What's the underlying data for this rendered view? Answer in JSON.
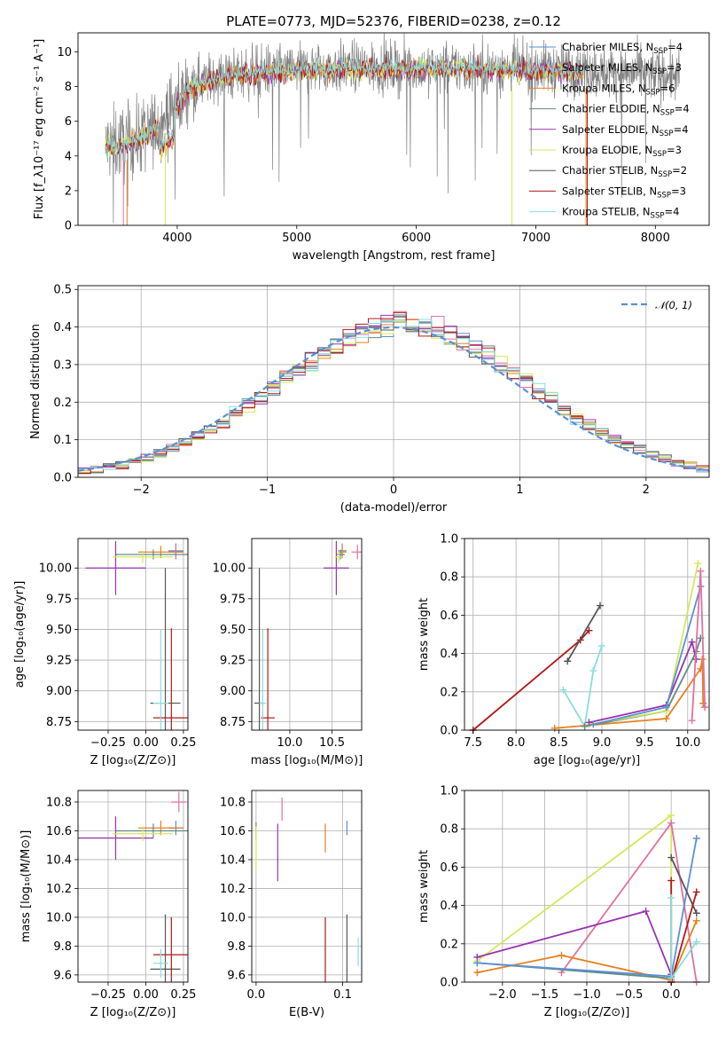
{
  "title": "PLATE=0773, MJD=52376, FIBERID=0238, z=0.12",
  "colors": {
    "Chabrier MILES": "#5b8fd4",
    "Salpeter MILES": "#e0719f",
    "Kroupa MILES": "#e8801e",
    "Chabrier ELODIE": "#5e8c86",
    "Salpeter ELODIE": "#9932b0",
    "Kroupa ELODIE": "#d4e85a",
    "Chabrier STELIB": "#555555",
    "Salpeter STELIB": "#b01818",
    "Kroupa STELIB": "#86dfe0"
  },
  "chart_data": [
    {
      "id": "spectrum",
      "type": "line",
      "xlabel": "wavelength [Angstrom, rest frame]",
      "ylabel": "Flux [f_λ10⁻¹⁷ erg cm⁻² s⁻¹ A⁻¹]",
      "xlim": [
        3170,
        8450
      ],
      "ylim": [
        0,
        11.1
      ],
      "xticks": [
        "4000",
        "5000",
        "6000",
        "7000",
        "8000"
      ],
      "yticks": [
        "0",
        "2",
        "4",
        "6",
        "8",
        "10"
      ],
      "legend_position": "top-right",
      "legend": [
        {
          "model": "Chabrier MILES",
          "label_a": "Chabrier MILES, N",
          "sub": "SSP",
          "label_b": "=4"
        },
        {
          "model": "Salpeter MILES",
          "label_a": "Salpeter MILES, N",
          "sub": "SSP",
          "label_b": "=3"
        },
        {
          "model": "Kroupa MILES",
          "label_a": "Kroupa MILES, N",
          "sub": "SSP",
          "label_b": "=6"
        },
        {
          "model": "Chabrier ELODIE",
          "label_a": "Chabrier ELODIE, N",
          "sub": "SSP",
          "label_b": "=4"
        },
        {
          "model": "Salpeter ELODIE",
          "label_a": "Salpeter ELODIE, N",
          "sub": "SSP",
          "label_b": "=4"
        },
        {
          "model": "Kroupa ELODIE",
          "label_a": "Kroupa ELODIE, N",
          "sub": "SSP",
          "label_b": "=3"
        },
        {
          "model": "Chabrier STELIB",
          "label_a": "Chabrier STELIB, N",
          "sub": "SSP",
          "label_b": "=2"
        },
        {
          "model": "Salpeter STELIB",
          "label_a": "Salpeter STELIB, N",
          "sub": "SSP",
          "label_b": "=3"
        },
        {
          "model": "Kroupa STELIB",
          "label_a": "Kroupa STELIB, N",
          "sub": "SSP",
          "label_b": "=4"
        }
      ],
      "continuum": {
        "wavelength": [
          3400,
          3600,
          3800,
          4000,
          4100,
          4300,
          4600,
          5000,
          5500,
          6000,
          6500,
          7000,
          7500,
          8000,
          8200
        ],
        "flux": [
          4.6,
          4.8,
          5.5,
          7.0,
          8.0,
          8.5,
          8.8,
          9.0,
          9.1,
          9.1,
          9.1,
          9.0,
          8.9,
          8.7,
          8.6
        ]
      },
      "data_range": [
        3400,
        8200
      ],
      "model_range": [
        3400,
        7400
      ]
    },
    {
      "id": "residuals",
      "type": "line",
      "xlabel": "(data-model)/error",
      "ylabel": "Normed distribution",
      "xlim": [
        -2.5,
        2.5
      ],
      "ylim": [
        0,
        0.51
      ],
      "xticks": [
        "−2",
        "−1",
        "0",
        "1",
        "2"
      ],
      "yticks": [
        "0.0",
        "0.1",
        "0.2",
        "0.3",
        "0.4",
        "0.5"
      ],
      "grid": true,
      "legend_position": "top-right",
      "legend_label": "𝒩(0, 1)",
      "reference_curve": "standard normal pdf, mean 0, sigma 1",
      "bin_width": 0.1,
      "histogram_note": "one step histogram per model, all close to the normal curve with peak near 0.42-0.48 at x=0.1"
    },
    {
      "id": "age-vs-Z",
      "type": "scatter",
      "xlabel": "Z [log₁₀(Z/Z⊙)]",
      "ylabel": "age  [log₁₀(age/yr)]",
      "xlim": [
        -0.45,
        0.28
      ],
      "ylim": [
        8.68,
        10.24
      ],
      "xticks": [
        "−0.25",
        "0.00",
        "0.25"
      ],
      "xtick_values": [
        -0.25,
        0,
        0.25
      ],
      "yticks": [
        "8.75",
        "9.00",
        "9.25",
        "9.50",
        "9.75",
        "10.00"
      ],
      "ytick_values": [
        8.75,
        9.0,
        9.25,
        9.5,
        9.75,
        10.0
      ],
      "grid": true,
      "points": [
        {
          "model": "Chabrier MILES",
          "x": 0.2,
          "y": 10.14,
          "xerr": 0.05,
          "yerr": 0.06
        },
        {
          "model": "Salpeter MILES",
          "x": 0.2,
          "y": 10.13,
          "xerr": 0.05,
          "yerr": 0.06
        },
        {
          "model": "Kroupa MILES",
          "x": 0.1,
          "y": 10.13,
          "xerr": 0.15,
          "yerr": 0.05
        },
        {
          "model": "Chabrier ELODIE",
          "x": 0.05,
          "y": 10.11,
          "xerr": 0.25,
          "yerr": 0.04
        },
        {
          "model": "Salpeter ELODIE",
          "x": -0.2,
          "y": 10.0,
          "xerr": 0.2,
          "yerr": 0.22
        },
        {
          "model": "Kroupa ELODIE",
          "x": -0.02,
          "y": 10.09,
          "xerr": 0.2,
          "yerr": 0.05
        },
        {
          "model": "Chabrier STELIB",
          "x": 0.13,
          "y": 8.9,
          "xerr": 0.1,
          "yerr": 1.1
        },
        {
          "model": "Salpeter STELIB",
          "x": 0.17,
          "y": 8.78,
          "xerr": 0.12,
          "yerr": 0.73
        },
        {
          "model": "Kroupa STELIB",
          "x": 0.1,
          "y": 8.9,
          "xerr": 0.05,
          "yerr": 0.6
        }
      ]
    },
    {
      "id": "age-vs-mass",
      "type": "scatter",
      "xlabel": "mass [log₁₀(M/M⊙)]",
      "ylabel": "",
      "xlim": [
        9.55,
        10.85
      ],
      "ylim": [
        8.68,
        10.24
      ],
      "xticks": [
        "10.0",
        "10.5"
      ],
      "xtick_values": [
        10.0,
        10.5
      ],
      "yticks": [
        "8.75",
        "9.00",
        "9.25",
        "9.50",
        "9.75",
        "10.00"
      ],
      "ytick_values": [
        8.75,
        9.0,
        9.25,
        9.5,
        9.75,
        10.0
      ],
      "grid": true,
      "points": [
        {
          "model": "Chabrier MILES",
          "x": 10.62,
          "y": 10.14,
          "xerr": 0.05,
          "yerr": 0.06
        },
        {
          "model": "Salpeter MILES",
          "x": 10.8,
          "y": 10.13,
          "xerr": 0.07,
          "yerr": 0.06
        },
        {
          "model": "Kroupa MILES",
          "x": 10.62,
          "y": 10.13,
          "xerr": 0.05,
          "yerr": 0.05
        },
        {
          "model": "Chabrier ELODIE",
          "x": 10.6,
          "y": 10.11,
          "xerr": 0.05,
          "yerr": 0.04
        },
        {
          "model": "Salpeter ELODIE",
          "x": 10.55,
          "y": 10.0,
          "xerr": 0.15,
          "yerr": 0.22
        },
        {
          "model": "Kroupa ELODIE",
          "x": 10.58,
          "y": 10.09,
          "xerr": 0.05,
          "yerr": 0.05
        },
        {
          "model": "Chabrier STELIB",
          "x": 9.64,
          "y": 8.9,
          "xerr": 0.06,
          "yerr": 1.1
        },
        {
          "model": "Salpeter STELIB",
          "x": 9.74,
          "y": 8.78,
          "xerr": 0.08,
          "yerr": 0.73
        },
        {
          "model": "Kroupa STELIB",
          "x": 9.68,
          "y": 8.9,
          "xerr": 0.04,
          "yerr": 0.6
        }
      ]
    },
    {
      "id": "weight-vs-age",
      "type": "line",
      "xlabel": "age  [log₁₀(age/yr)]",
      "ylabel": "mass weight",
      "xlim": [
        7.4,
        10.25
      ],
      "ylim": [
        0,
        1
      ],
      "xticks": [
        "7.5",
        "8.0",
        "8.5",
        "9.0",
        "9.5",
        "10.0"
      ],
      "xtick_values": [
        7.5,
        8.0,
        8.5,
        9.0,
        9.5,
        10.0
      ],
      "yticks": [
        "0.0",
        "0.2",
        "0.4",
        "0.6",
        "0.8",
        "1.0"
      ],
      "ytick_values": [
        0,
        0.2,
        0.4,
        0.6,
        0.8,
        1.0
      ],
      "grid": true,
      "series": [
        {
          "model": "Salpeter STELIB",
          "x": [
            7.5,
            8.75,
            8.85
          ],
          "y": [
            0.0,
            0.47,
            0.52
          ]
        },
        {
          "model": "Chabrier STELIB",
          "x": [
            8.6,
            8.98
          ],
          "y": [
            0.36,
            0.65
          ]
        },
        {
          "model": "Kroupa STELIB",
          "x": [
            8.55,
            8.8,
            8.9,
            9.0
          ],
          "y": [
            0.21,
            0.02,
            0.31,
            0.44
          ]
        },
        {
          "model": "Kroupa MILES",
          "x": [
            8.45,
            9.75,
            10.15,
            10.17,
            10.18,
            10.2
          ],
          "y": [
            0.01,
            0.06,
            0.32,
            0.37,
            0.14,
            0.12
          ]
        },
        {
          "model": "Chabrier ELODIE",
          "x": [
            8.8,
            9.75,
            10.1,
            10.15
          ],
          "y": [
            0.02,
            0.1,
            0.41,
            0.48
          ]
        },
        {
          "model": "Kroupa ELODIE",
          "x": [
            8.85,
            9.75,
            10.12
          ],
          "y": [
            0.03,
            0.1,
            0.87
          ]
        },
        {
          "model": "Salpeter ELODIE",
          "x": [
            8.85,
            9.75,
            10.05,
            10.1
          ],
          "y": [
            0.04,
            0.13,
            0.46,
            0.37
          ]
        },
        {
          "model": "Chabrier MILES",
          "x": [
            8.9,
            9.75,
            10.15
          ],
          "y": [
            0.03,
            0.12,
            0.75
          ]
        },
        {
          "model": "Salpeter MILES",
          "x": [
            10.05,
            10.15,
            10.2
          ],
          "y": [
            0.05,
            0.83,
            0.12
          ]
        }
      ]
    },
    {
      "id": "mass-vs-Z",
      "type": "scatter",
      "xlabel": "Z [log₁₀(Z/Z⊙)]",
      "ylabel": "mass [log₁₀(M/M⊙)]",
      "xlim": [
        -0.45,
        0.28
      ],
      "ylim": [
        9.55,
        10.88
      ],
      "xticks": [
        "−0.25",
        "0.00",
        "0.25"
      ],
      "xtick_values": [
        -0.25,
        0,
        0.25
      ],
      "yticks": [
        "9.6",
        "9.8",
        "10.0",
        "10.2",
        "10.4",
        "10.6",
        "10.8"
      ],
      "ytick_values": [
        9.6,
        9.8,
        10.0,
        10.2,
        10.4,
        10.6,
        10.8
      ],
      "grid": true,
      "points": [
        {
          "model": "Chabrier MILES",
          "x": 0.2,
          "y": 10.62,
          "xerr": 0.05,
          "yerr": 0.05
        },
        {
          "model": "Salpeter MILES",
          "x": 0.22,
          "y": 10.8,
          "xerr": 0.05,
          "yerr": 0.07
        },
        {
          "model": "Kroupa MILES",
          "x": 0.1,
          "y": 10.62,
          "xerr": 0.15,
          "yerr": 0.05
        },
        {
          "model": "Chabrier ELODIE",
          "x": 0.05,
          "y": 10.6,
          "xerr": 0.25,
          "yerr": 0.05
        },
        {
          "model": "Salpeter ELODIE",
          "x": -0.2,
          "y": 10.55,
          "xerr": 0.25,
          "yerr": 0.15
        },
        {
          "model": "Kroupa ELODIE",
          "x": -0.02,
          "y": 10.58,
          "xerr": 0.2,
          "yerr": 0.05
        },
        {
          "model": "Chabrier STELIB",
          "x": 0.13,
          "y": 9.64,
          "xerr": 0.1,
          "yerr": 0.38
        },
        {
          "model": "Salpeter STELIB",
          "x": 0.17,
          "y": 9.74,
          "xerr": 0.12,
          "yerr": 0.26
        },
        {
          "model": "Kroupa STELIB",
          "x": 0.1,
          "y": 9.68,
          "xerr": 0.05,
          "yerr": 0.1
        }
      ]
    },
    {
      "id": "mass-vs-ebv",
      "type": "scatter",
      "xlabel": "E(B-V)",
      "ylabel": "",
      "xlim": [
        -0.005,
        0.122
      ],
      "ylim": [
        9.55,
        10.88
      ],
      "xticks": [
        "0.0",
        "0.1"
      ],
      "xtick_values": [
        0.0,
        0.1
      ],
      "yticks": [
        "9.6",
        "9.8",
        "10.0",
        "10.2",
        "10.4",
        "10.6",
        "10.8"
      ],
      "ytick_values": [
        9.6,
        9.8,
        10.0,
        10.2,
        10.4,
        10.6,
        10.8
      ],
      "grid": true,
      "points": [
        {
          "model": "Chabrier MILES",
          "x": 0.105,
          "y": 10.62,
          "xerr": 0,
          "yerr": 0.05
        },
        {
          "model": "Salpeter MILES",
          "x": 0.03,
          "y": 10.75,
          "xerr": 0,
          "yerr": 0.08
        },
        {
          "model": "Kroupa MILES",
          "x": 0.08,
          "y": 10.55,
          "xerr": 0,
          "yerr": 0.1
        },
        {
          "model": "Chabrier ELODIE",
          "x": 0.0,
          "y": 10.6,
          "xerr": 0,
          "yerr": 0.06
        },
        {
          "model": "Salpeter ELODIE",
          "x": 0.025,
          "y": 10.45,
          "xerr": 0,
          "yerr": 0.2
        },
        {
          "model": "Kroupa ELODIE",
          "x": 0.0,
          "y": 10.48,
          "xerr": 0,
          "yerr": 0.15
        },
        {
          "model": "Chabrier STELIB",
          "x": 0.105,
          "y": 9.64,
          "xerr": 0,
          "yerr": 0.38
        },
        {
          "model": "Salpeter STELIB",
          "x": 0.08,
          "y": 9.74,
          "xerr": 0,
          "yerr": 0.26
        },
        {
          "model": "Kroupa STELIB",
          "x": 0.118,
          "y": 9.76,
          "xerr": 0,
          "yerr": 0.1
        }
      ]
    },
    {
      "id": "weight-vs-Z",
      "type": "line",
      "xlabel": "Z [log₁₀(Z/Z⊙)]",
      "ylabel": "mass weight",
      "xlim": [
        -2.45,
        0.45
      ],
      "ylim": [
        0,
        1
      ],
      "xticks": [
        "−2.0",
        "−1.5",
        "−1.0",
        "−0.5",
        "0.0"
      ],
      "xtick_values": [
        -2.0,
        -1.5,
        -1.0,
        -0.5,
        0.0
      ],
      "yticks": [
        "0.0",
        "0.2",
        "0.4",
        "0.6",
        "0.8",
        "1.0"
      ],
      "ytick_values": [
        0,
        0.2,
        0.4,
        0.6,
        0.8,
        1.0
      ],
      "grid": true,
      "series": [
        {
          "model": "Kroupa ELODIE",
          "x": [
            -2.3,
            0.0,
            0.0
          ],
          "y": [
            0.11,
            0.87,
            0.02
          ]
        },
        {
          "model": "Salpeter MILES",
          "x": [
            -1.3,
            0.0,
            0.3
          ],
          "y": [
            0.05,
            0.83,
            0.0
          ]
        },
        {
          "model": "Kroupa MILES",
          "x": [
            -2.3,
            -1.3,
            0.0,
            0.3
          ],
          "y": [
            0.05,
            0.14,
            0.01,
            0.32
          ]
        },
        {
          "model": "Salpeter ELODIE",
          "x": [
            -2.3,
            -0.3,
            0.0
          ],
          "y": [
            0.13,
            0.37,
            0.04
          ]
        },
        {
          "model": "Chabrier ELODIE",
          "x": [
            -2.3,
            0.0,
            0.0
          ],
          "y": [
            0.1,
            0.02,
            0.0
          ]
        },
        {
          "model": "Chabrier MILES",
          "x": [
            -2.3,
            0.0,
            0.3
          ],
          "y": [
            0.1,
            0.03,
            0.75
          ]
        },
        {
          "model": "Chabrier STELIB",
          "x": [
            0.0,
            0.3
          ],
          "y": [
            0.65,
            0.36
          ]
        },
        {
          "model": "Salpeter STELIB",
          "x": [
            0.0,
            0.0,
            0.3
          ],
          "y": [
            0.53,
            0.0,
            0.47
          ]
        },
        {
          "model": "Kroupa STELIB",
          "x": [
            0.0,
            0.0,
            0.3
          ],
          "y": [
            0.44,
            0.02,
            0.21
          ]
        }
      ]
    }
  ]
}
